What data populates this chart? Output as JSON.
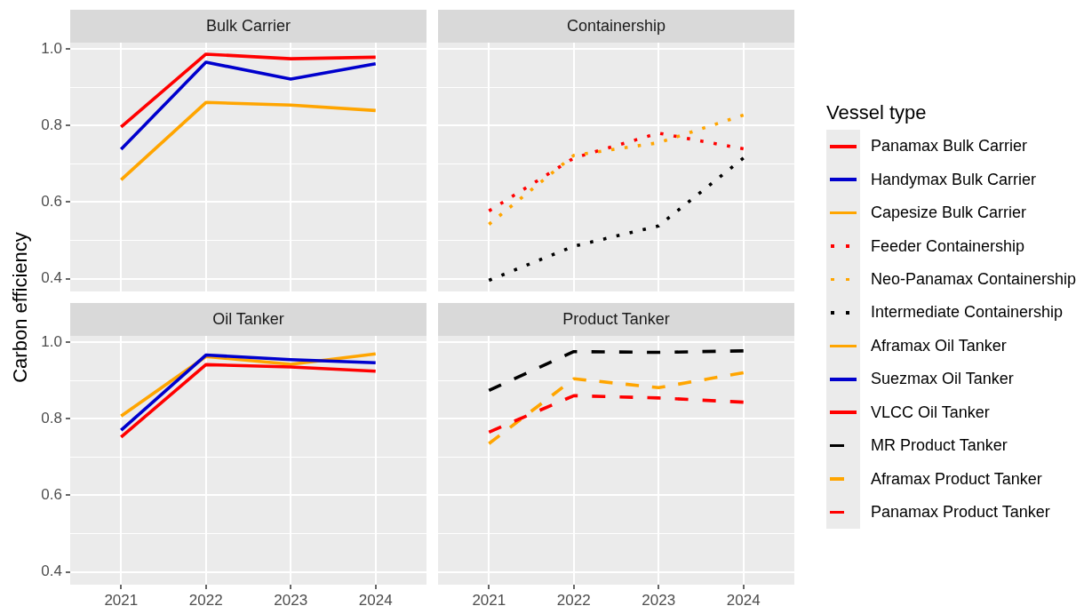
{
  "chart_data": [
    {
      "type": "line",
      "title": "Bulk Carrier",
      "ylabel": "Carbon efficiency",
      "legend_title": "Vessel type",
      "categories": [
        "2021",
        "2022",
        "2023",
        "2024"
      ],
      "series": [
        {
          "name": "Panamax Bulk Carrier",
          "color": "#ff0000",
          "values": [
            0.796,
            0.986,
            0.974,
            0.978
          ]
        },
        {
          "name": "Handymax Bulk Carrier",
          "color": "#0000cd",
          "values": [
            0.738,
            0.965,
            0.921,
            0.961
          ]
        },
        {
          "name": "Capesize Bulk Carrier",
          "color": "#ffa500",
          "values": [
            0.658,
            0.86,
            0.853,
            0.839
          ]
        }
      ],
      "ylim": [
        0.367,
        1.016
      ],
      "yticks": [
        0.4,
        {
          "value": 0.5,
          "label": null
        },
        0.6,
        {
          "value": 0.7,
          "label": null
        },
        0.8,
        {
          "value": 0.9,
          "label": null
        },
        {
          "value": 1,
          "label": "1.0"
        }
      ],
      "grid": true,
      "legend": "right",
      "tick_labels": "y",
      "line_style": "solid"
    },
    {
      "type": "line",
      "title": "Containership",
      "categories": [
        "2021",
        "2022",
        "2023",
        "2024"
      ],
      "series": [
        {
          "name": "Feeder Containership",
          "color": "#ff0000",
          "values": [
            0.577,
            0.715,
            0.78,
            0.739
          ]
        },
        {
          "name": "Neo-Panamax Containership",
          "color": "#ffa500",
          "values": [
            0.542,
            0.722,
            0.755,
            0.827
          ]
        },
        {
          "name": "Intermediate Containership",
          "color": "#000000",
          "values": [
            0.396,
            0.485,
            0.538,
            0.715
          ]
        }
      ],
      "ylim": [
        0.367,
        1.016
      ],
      "yticks": [
        0.4,
        {
          "value": 0.5,
          "label": null
        },
        0.6,
        {
          "value": 0.7,
          "label": null
        },
        0.8,
        {
          "value": 0.9,
          "label": null
        },
        1
      ],
      "grid": true,
      "legend": "right",
      "tick_labels": false,
      "line_style": "dotted"
    },
    {
      "type": "line",
      "title": "Oil Tanker",
      "categories": [
        "2021",
        "2022",
        "2023",
        "2024"
      ],
      "series": [
        {
          "name": "Aframax Oil Tanker",
          "color": "#ffa500",
          "values": [
            0.807,
            0.962,
            0.942,
            0.969
          ]
        },
        {
          "name": "Suezmax Oil Tanker",
          "color": "#0000cd",
          "values": [
            0.77,
            0.966,
            0.954,
            0.946
          ]
        },
        {
          "name": "VLCC Oil Tanker",
          "color": "#ff0000",
          "values": [
            0.752,
            0.941,
            0.935,
            0.924
          ]
        }
      ],
      "ylim": [
        0.367,
        1.016
      ],
      "yticks": [
        0.4,
        {
          "value": 0.5,
          "label": null
        },
        0.6,
        {
          "value": 0.7,
          "label": null
        },
        0.8,
        {
          "value": 0.9,
          "label": null
        },
        {
          "value": 1,
          "label": "1.0"
        }
      ],
      "grid": true,
      "legend": "right",
      "line_style": "solid"
    },
    {
      "type": "line",
      "title": "Product Tanker",
      "categories": [
        "2021",
        "2022",
        "2023",
        "2024"
      ],
      "series": [
        {
          "name": "MR Product Tanker",
          "color": "#000000",
          "values": [
            0.874,
            0.975,
            0.973,
            0.977
          ]
        },
        {
          "name": "Aframax Product Tanker",
          "color": "#ffa500",
          "values": [
            0.735,
            0.904,
            0.881,
            0.92
          ]
        },
        {
          "name": "Panamax Product Tanker",
          "color": "#ff0000",
          "values": [
            0.765,
            0.86,
            0.854,
            0.843
          ]
        }
      ],
      "ylim": [
        0.367,
        1.016
      ],
      "yticks": [
        0.4,
        {
          "value": 0.5,
          "label": null
        },
        0.6,
        {
          "value": 0.7,
          "label": null
        },
        0.8,
        {
          "value": 0.9,
          "label": null
        },
        1
      ],
      "grid": true,
      "legend": "right",
      "tick_labels": "x",
      "line_style": "dashed"
    }
  ]
}
